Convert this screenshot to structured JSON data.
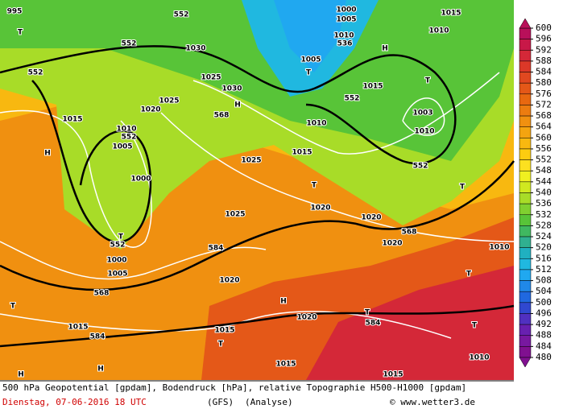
{
  "colorbar": {
    "ticks": [
      600,
      596,
      592,
      588,
      584,
      580,
      576,
      572,
      568,
      564,
      560,
      556,
      552,
      548,
      544,
      540,
      536,
      532,
      528,
      524,
      520,
      516,
      512,
      508,
      504,
      500,
      496,
      492,
      488,
      484,
      480
    ],
    "colors": [
      "#b8105a",
      "#c81848",
      "#d42838",
      "#dc3828",
      "#e04820",
      "#e45818",
      "#e86810",
      "#ec7c10",
      "#f09010",
      "#f4a410",
      "#f8b810",
      "#fccc10",
      "#fce020",
      "#f0f020",
      "#d0e820",
      "#a8dc28",
      "#80d030",
      "#58c438",
      "#40b860",
      "#30b090",
      "#20b0c0",
      "#20b8e0",
      "#20a8f0",
      "#2088e8",
      "#2068e0",
      "#3048d0",
      "#5030c0",
      "#6820b0",
      "#7818a0",
      "#801090"
    ]
  },
  "map_labels": [
    "995",
    "T",
    "552",
    "1000",
    "1005",
    "1010",
    "536",
    "1015",
    "1010",
    "H",
    "552",
    "1030",
    "552",
    "1025",
    "1030",
    "1005",
    "T",
    "1015",
    "552",
    "T",
    "H",
    "1025",
    "1020",
    "568",
    "1015",
    "1010",
    "552",
    "1005",
    "1010",
    "1003",
    "1010",
    "H",
    "1015",
    "1025",
    "552",
    "1000",
    "T",
    "T",
    "1020",
    "1025",
    "1020",
    "T",
    "552",
    "568",
    "1020",
    "584",
    "1000",
    "1010",
    "1005",
    "T",
    "1020",
    "568",
    "H",
    "T",
    "1020",
    "T",
    "584",
    "1015",
    "584",
    "1015",
    "T",
    "T",
    "1015",
    "H",
    "H",
    "1015",
    "1010"
  ],
  "footer": {
    "line1": "500 hPa Geopotential [gpdam], Bodendruck [hPa], relative Topographie H500-H1000 [gpdam]",
    "date": "Dienstag, 07-06-2016  18 UTC",
    "model": "(GFS)",
    "run": "(Analyse)",
    "credit": "© www.wetter3.de"
  }
}
